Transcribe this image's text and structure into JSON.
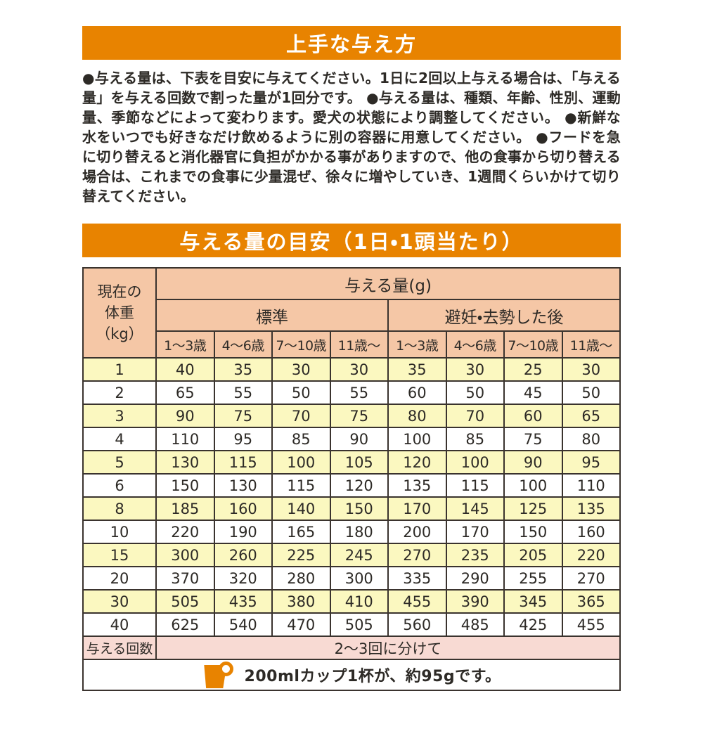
{
  "colors": {
    "accent_orange": "#e88300",
    "header_peach": "#f5c7a6",
    "row_yellow": "#fbf8c0",
    "footer_pink": "#f8dad3",
    "border_dark": "#3a332e",
    "note_bottom_border": "#9a9a9a"
  },
  "section_feeding_method": {
    "title": "上手な与え方",
    "body": "●与える量は、下表を目安に与えてください。1日に2回以上与える場合は、「与える量」を与える回数で割った量が1回分です。 ●与える量は、種類、年齢、性別、運動量、季節などによって変わります。愛犬の状態により調整してください。 ●新鮮な水をいつでも好きなだけ飲めるように別の容器に用意してください。 ●フードを急に切り替えると消化器官に負担がかかる事がありますので、他の食事から切り替える場合は、これまでの食事に少量混ぜ、徐々に増やしていき、1週間くらいかけて切り替えてください。"
  },
  "section_amount_guide": {
    "title": "与える量の目安（1日・1頭当たり）"
  },
  "table": {
    "corner_header": "現在の\n体重\n（kg）",
    "amount_header": "与える量(g)",
    "group_headers": [
      "標準",
      "避妊・去勢した後"
    ],
    "age_headers": [
      "1～3歳",
      "4～6歳",
      "7～10歳",
      "11歳～",
      "1～3歳",
      "4～6歳",
      "7～10歳",
      "11歳～"
    ],
    "rows": [
      {
        "weight": "1",
        "values": [
          40,
          35,
          30,
          30,
          35,
          30,
          25,
          30
        ]
      },
      {
        "weight": "2",
        "values": [
          65,
          55,
          50,
          55,
          60,
          50,
          45,
          50
        ]
      },
      {
        "weight": "3",
        "values": [
          90,
          75,
          70,
          75,
          80,
          70,
          60,
          65
        ]
      },
      {
        "weight": "4",
        "values": [
          110,
          95,
          85,
          90,
          100,
          85,
          75,
          80
        ]
      },
      {
        "weight": "5",
        "values": [
          130,
          115,
          100,
          105,
          120,
          100,
          90,
          95
        ]
      },
      {
        "weight": "6",
        "values": [
          150,
          130,
          115,
          120,
          135,
          115,
          100,
          110
        ]
      },
      {
        "weight": "8",
        "values": [
          185,
          160,
          140,
          150,
          170,
          145,
          125,
          135
        ]
      },
      {
        "weight": "10",
        "values": [
          220,
          190,
          165,
          180,
          200,
          170,
          150,
          160
        ]
      },
      {
        "weight": "15",
        "values": [
          300,
          260,
          225,
          245,
          270,
          235,
          205,
          220
        ]
      },
      {
        "weight": "20",
        "values": [
          370,
          320,
          280,
          300,
          335,
          290,
          255,
          270
        ]
      },
      {
        "weight": "30",
        "values": [
          505,
          435,
          380,
          410,
          455,
          390,
          345,
          365
        ]
      },
      {
        "weight": "40",
        "values": [
          625,
          540,
          470,
          505,
          560,
          485,
          425,
          455
        ]
      }
    ],
    "frequency": {
      "label": "与える回数",
      "value": "2～3回に分けて"
    },
    "note": "200mlカップ1杯が、約95gです。"
  }
}
